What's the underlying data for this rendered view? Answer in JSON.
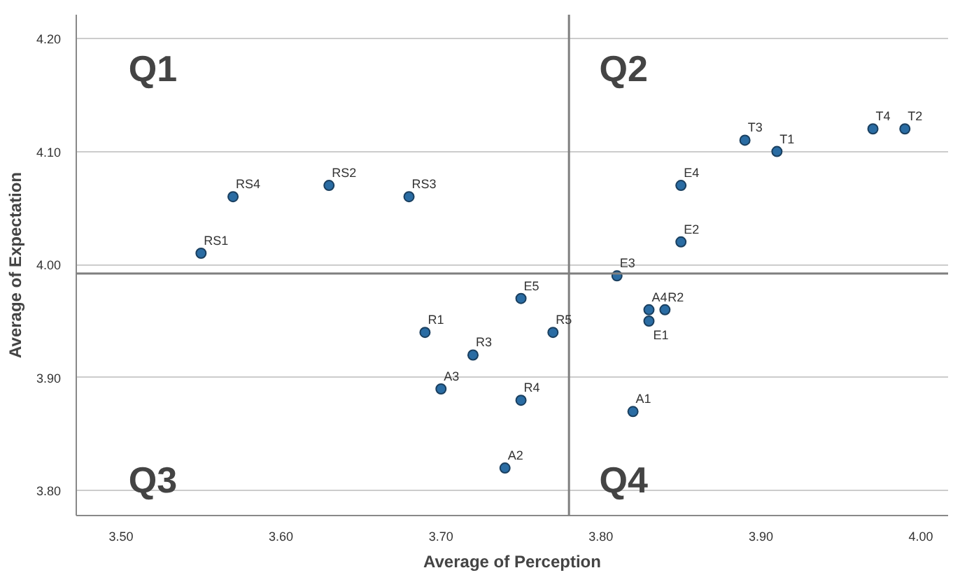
{
  "chart_data": {
    "type": "scatter",
    "xlabel": "Average of Perception",
    "ylabel": "Average of Expectation",
    "xlim": [
      3.472,
      4.017
    ],
    "ylim": [
      3.778,
      4.221
    ],
    "xticks": [
      {
        "value": 3.5,
        "label": "3.50"
      },
      {
        "value": 3.6,
        "label": "3.60"
      },
      {
        "value": 3.7,
        "label": "3.70"
      },
      {
        "value": 3.8,
        "label": "3.80"
      },
      {
        "value": 3.9,
        "label": "3.90"
      },
      {
        "value": 4.0,
        "label": "4.00"
      }
    ],
    "yticks": [
      {
        "value": 3.8,
        "label": "3.80"
      },
      {
        "value": 3.9,
        "label": "3.90"
      },
      {
        "value": 4.0,
        "label": "4.00"
      },
      {
        "value": 4.1,
        "label": "4.10"
      },
      {
        "value": 4.2,
        "label": "4.20"
      }
    ],
    "grid": "y",
    "marker": "circle",
    "series": [
      {
        "color": "#2a6ca3",
        "x": [
          3.55,
          3.57,
          3.63,
          3.68,
          3.69,
          3.7,
          3.72,
          3.74,
          3.75,
          3.75,
          3.77,
          3.81,
          3.83,
          3.84,
          3.83,
          3.82,
          3.85,
          3.85,
          3.89,
          3.91,
          3.97,
          3.99
        ],
        "values": [
          4.01,
          4.06,
          4.07,
          4.06,
          3.94,
          3.89,
          3.92,
          3.82,
          3.97,
          3.88,
          3.94,
          3.99,
          3.96,
          3.96,
          3.95,
          3.87,
          4.02,
          4.07,
          4.11,
          4.1,
          4.12,
          4.12
        ]
      }
    ],
    "ref_lines": [
      {
        "axis": "x",
        "value": 3.78,
        "color": "#7f7f7f"
      },
      {
        "axis": "y",
        "value": 3.992,
        "color": "#7f7f7f"
      }
    ],
    "annotations": [
      "Q1",
      "Q2",
      "Q3",
      "Q4",
      {
        "text": "RS1",
        "x": 3.55,
        "y": 4.01
      },
      {
        "text": "RS4",
        "x": 3.57,
        "y": 4.06
      },
      {
        "text": "RS2",
        "x": 3.63,
        "y": 4.07
      },
      {
        "text": "RS3",
        "x": 3.68,
        "y": 4.06
      },
      {
        "text": "R1",
        "x": 3.69,
        "y": 3.94
      },
      {
        "text": "A3",
        "x": 3.7,
        "y": 3.89
      },
      {
        "text": "R3",
        "x": 3.72,
        "y": 3.92
      },
      {
        "text": "A2",
        "x": 3.74,
        "y": 3.82
      },
      {
        "text": "E5",
        "x": 3.75,
        "y": 3.97
      },
      {
        "text": "R4",
        "x": 3.75,
        "y": 3.88
      },
      {
        "text": "R5",
        "x": 3.77,
        "y": 3.94
      },
      {
        "text": "E3",
        "x": 3.81,
        "y": 3.99
      },
      {
        "text": "A4",
        "x": 3.83,
        "y": 3.96
      },
      {
        "text": "R2",
        "x": 3.84,
        "y": 3.96
      },
      {
        "text": "E1",
        "x": 3.83,
        "y": 3.95
      },
      {
        "text": "A1",
        "x": 3.82,
        "y": 3.87
      },
      {
        "text": "E2",
        "x": 3.85,
        "y": 4.02
      },
      {
        "text": "E4",
        "x": 3.85,
        "y": 4.07
      },
      {
        "text": "T3",
        "x": 3.89,
        "y": 4.11
      },
      {
        "text": "T1",
        "x": 3.91,
        "y": 4.1
      },
      {
        "text": "T4",
        "x": 3.97,
        "y": 4.12
      },
      {
        "text": "T2",
        "x": 3.99,
        "y": 4.12
      }
    ]
  }
}
